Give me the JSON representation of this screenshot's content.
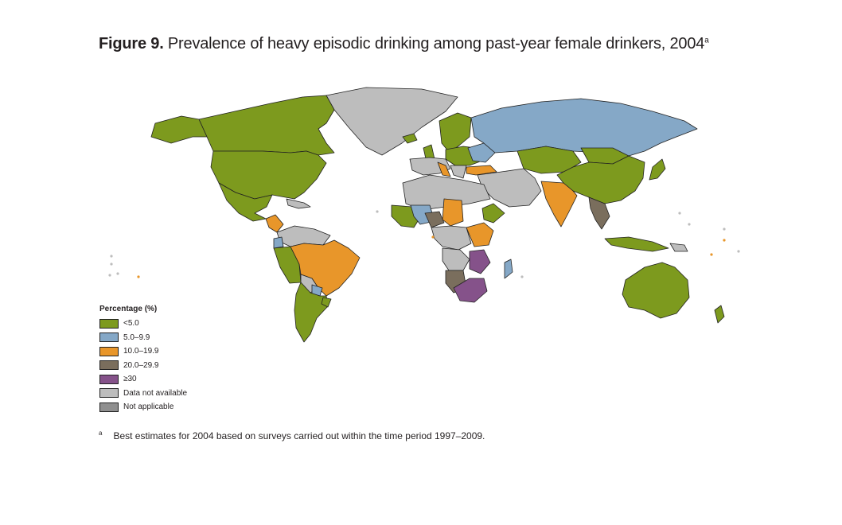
{
  "title": {
    "figure_label": "Figure 9.",
    "text": "Prevalence of heavy episodic drinking among past-year female drinkers, 2004",
    "superscript": "a"
  },
  "legend": {
    "title": "Percentage (%)",
    "items": [
      {
        "label": "<5.0",
        "color": "#7d9a1e"
      },
      {
        "label": "5.0–9.9",
        "color": "#85a8c7"
      },
      {
        "label": "10.0–19.9",
        "color": "#e8962a"
      },
      {
        "label": "20.0–29.9",
        "color": "#7a6e5d"
      },
      {
        "label": "≥30",
        "color": "#85528a"
      },
      {
        "label": "Data not available",
        "color": "#bdbdbd"
      },
      {
        "label": "Not applicable",
        "color": "#8f8f8f"
      }
    ]
  },
  "footnote": {
    "marker": "a",
    "text": "Best estimates for 2004 based on surveys carried out within the time period 1997–2009."
  }
}
